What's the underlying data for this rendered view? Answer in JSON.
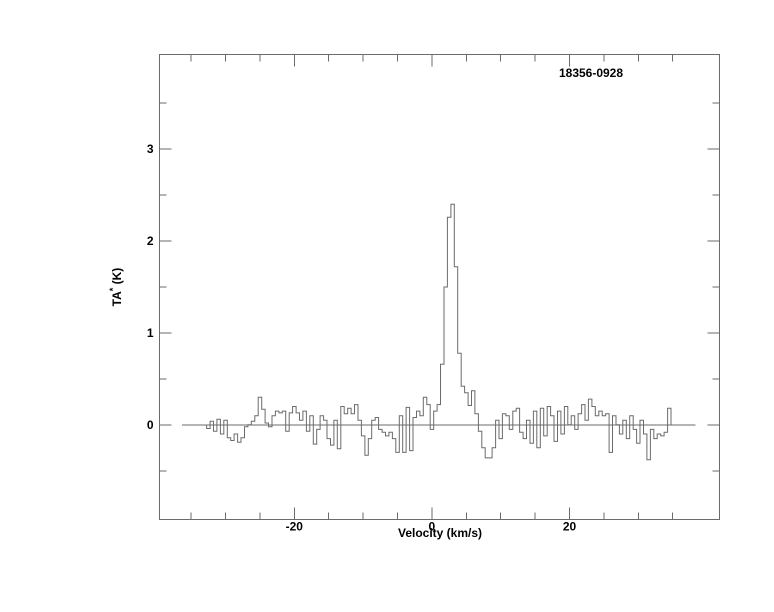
{
  "chart_data": {
    "type": "line",
    "subtype": "step-histogram-spectrum",
    "title": "18356-0928",
    "xlabel": "Velocity (km/s)",
    "ylabel": "TA* (K)",
    "ylabel_parts": {
      "main": "TA",
      "sup": "*",
      "rest": " (K)"
    },
    "xlim": [
      -39.6,
      41.8
    ],
    "ylim": [
      -1.03,
      4.03
    ],
    "grid": false,
    "legend": null,
    "axis_color": "#6b6b6b",
    "line_color": "#6b6b6b",
    "text_color": "#000000",
    "x_ticks": {
      "major": [
        -20,
        0,
        20
      ],
      "minor": [
        -35,
        -30,
        -25,
        -15,
        -10,
        -5,
        5,
        10,
        15,
        25,
        30,
        35
      ],
      "labels": [
        {
          "v": -20,
          "text": "-20"
        },
        {
          "v": 0,
          "text": "0"
        },
        {
          "v": 20,
          "text": "20"
        }
      ]
    },
    "y_ticks": {
      "major": [
        0,
        1,
        2,
        3
      ],
      "minor": [
        -0.5,
        0.5,
        1.5,
        2.5,
        3.5
      ],
      "labels": [
        {
          "v": 0,
          "text": "0"
        },
        {
          "v": 1,
          "text": "1"
        },
        {
          "v": 2,
          "text": "2"
        },
        {
          "v": 3,
          "text": "3"
        }
      ]
    },
    "spectrum": {
      "v_start": -32.75,
      "dv": 0.5,
      "zero_line_v": [
        -36.3,
        38.3
      ],
      "peak": {
        "velocity": 3.0,
        "ta_k": 2.4
      },
      "values": [
        -0.04,
        0.04,
        -0.07,
        0.06,
        -0.1,
        0.05,
        -0.14,
        -0.17,
        -0.1,
        -0.19,
        -0.14,
        -0.02,
        0.0,
        0.04,
        0.1,
        0.3,
        0.17,
        0.02,
        -0.02,
        0.1,
        0.15,
        0.13,
        0.15,
        -0.07,
        0.13,
        0.2,
        0.13,
        0.05,
        0.15,
        -0.07,
        0.1,
        -0.21,
        -0.05,
        0.1,
        0.05,
        -0.15,
        -0.22,
        0.05,
        -0.26,
        0.2,
        0.12,
        0.18,
        0.12,
        0.22,
        0.05,
        -0.12,
        -0.33,
        -0.15,
        0.05,
        0.08,
        -0.05,
        -0.08,
        -0.12,
        -0.08,
        -0.15,
        -0.3,
        0.1,
        -0.3,
        0.19,
        -0.28,
        0.08,
        0.15,
        0.1,
        0.3,
        0.22,
        -0.05,
        0.15,
        0.22,
        0.66,
        1.5,
        2.26,
        2.4,
        1.72,
        0.78,
        0.42,
        0.35,
        0.21,
        0.37,
        0.12,
        -0.07,
        -0.25,
        -0.36,
        -0.36,
        -0.25,
        0.05,
        -0.15,
        0.12,
        0.1,
        -0.05,
        0.15,
        0.18,
        -0.08,
        -0.15,
        0.05,
        -0.2,
        0.15,
        -0.25,
        0.18,
        -0.12,
        0.2,
        0.1,
        -0.18,
        0.15,
        -0.1,
        0.2,
        0.0,
        0.1,
        -0.05,
        0.12,
        0.22,
        0.05,
        0.28,
        0.2,
        0.1,
        0.15,
        0.1,
        0.12,
        -0.3,
        0.1,
        0.0,
        -0.1,
        0.05,
        -0.15,
        0.1,
        -0.05,
        -0.2,
        0.05,
        -0.1,
        -0.38,
        -0.05,
        -0.15,
        -0.1,
        -0.12,
        -0.08,
        0.18
      ]
    }
  }
}
